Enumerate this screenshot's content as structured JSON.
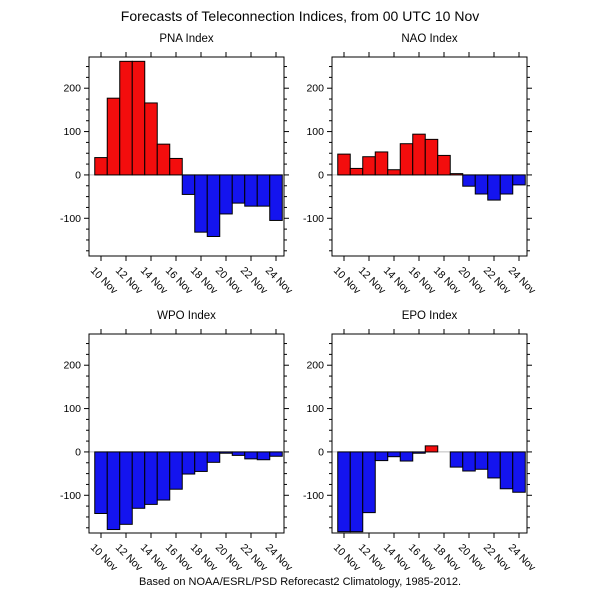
{
  "page_title": "Forecasts of Teleconnection Indices, from 00 UTC 10 Nov",
  "caption": "Based on NOAA/ESRL/PSD Reforecast2 Climatology, 1985-2012.",
  "colors": {
    "positive_bar": "#f30d0d",
    "negative_bar": "#1414ef",
    "zero_line": "#bdbdbd",
    "axis": "#000000",
    "background": "#ffffff"
  },
  "chart_data": [
    {
      "id": "pna",
      "type": "bar",
      "title": "PNA Index",
      "categories": [
        "10 Nov",
        "11 Nov",
        "12 Nov",
        "13 Nov",
        "14 Nov",
        "15 Nov",
        "16 Nov",
        "17 Nov",
        "18 Nov",
        "19 Nov",
        "20 Nov",
        "21 Nov",
        "22 Nov",
        "23 Nov",
        "24 Nov"
      ],
      "values": [
        40,
        177,
        262,
        262,
        166,
        71,
        38,
        -45,
        -132,
        -142,
        -90,
        -65,
        -72,
        -72,
        -105
      ],
      "yticks": [
        -100,
        0,
        100,
        200
      ],
      "ytick_minor_step": 25,
      "ylim": [
        -187,
        272
      ],
      "xtick_every": 2,
      "legend": "none",
      "grid": "off"
    },
    {
      "id": "nao",
      "type": "bar",
      "title": "NAO Index",
      "categories": [
        "10 Nov",
        "11 Nov",
        "12 Nov",
        "13 Nov",
        "14 Nov",
        "15 Nov",
        "16 Nov",
        "17 Nov",
        "18 Nov",
        "19 Nov",
        "20 Nov",
        "21 Nov",
        "22 Nov",
        "23 Nov",
        "24 Nov"
      ],
      "values": [
        48,
        15,
        42,
        53,
        12,
        72,
        94,
        82,
        45,
        3,
        -26,
        -44,
        -58,
        -44,
        -23
      ],
      "yticks": [
        -100,
        0,
        100,
        200
      ],
      "ytick_minor_step": 25,
      "ylim": [
        -187,
        272
      ],
      "xtick_every": 2,
      "legend": "none",
      "grid": "off"
    },
    {
      "id": "wpo",
      "type": "bar",
      "title": "WPO Index",
      "categories": [
        "10 Nov",
        "11 Nov",
        "12 Nov",
        "13 Nov",
        "14 Nov",
        "15 Nov",
        "16 Nov",
        "17 Nov",
        "18 Nov",
        "19 Nov",
        "20 Nov",
        "21 Nov",
        "22 Nov",
        "23 Nov",
        "24 Nov"
      ],
      "values": [
        -142,
        -179,
        -167,
        -130,
        -121,
        -111,
        -86,
        -51,
        -45,
        -24,
        -3,
        -8,
        -16,
        -18,
        -10
      ],
      "yticks": [
        -100,
        0,
        100,
        200
      ],
      "ytick_minor_step": 25,
      "ylim": [
        -187,
        272
      ],
      "xtick_every": 2,
      "legend": "none",
      "grid": "off"
    },
    {
      "id": "epo",
      "type": "bar",
      "title": "EPO Index",
      "categories": [
        "10 Nov",
        "11 Nov",
        "12 Nov",
        "13 Nov",
        "14 Nov",
        "15 Nov",
        "16 Nov",
        "17 Nov",
        "18 Nov",
        "19 Nov",
        "20 Nov",
        "21 Nov",
        "22 Nov",
        "23 Nov",
        "24 Nov"
      ],
      "values": [
        -184,
        -184,
        -140,
        -20,
        -11,
        -21,
        -3,
        14,
        0,
        -35,
        -44,
        -40,
        -60,
        -85,
        -93
      ],
      "yticks": [
        -100,
        0,
        100,
        200
      ],
      "ytick_minor_step": 25,
      "ylim": [
        -187,
        272
      ],
      "xtick_every": 2,
      "legend": "none",
      "grid": "off"
    }
  ]
}
